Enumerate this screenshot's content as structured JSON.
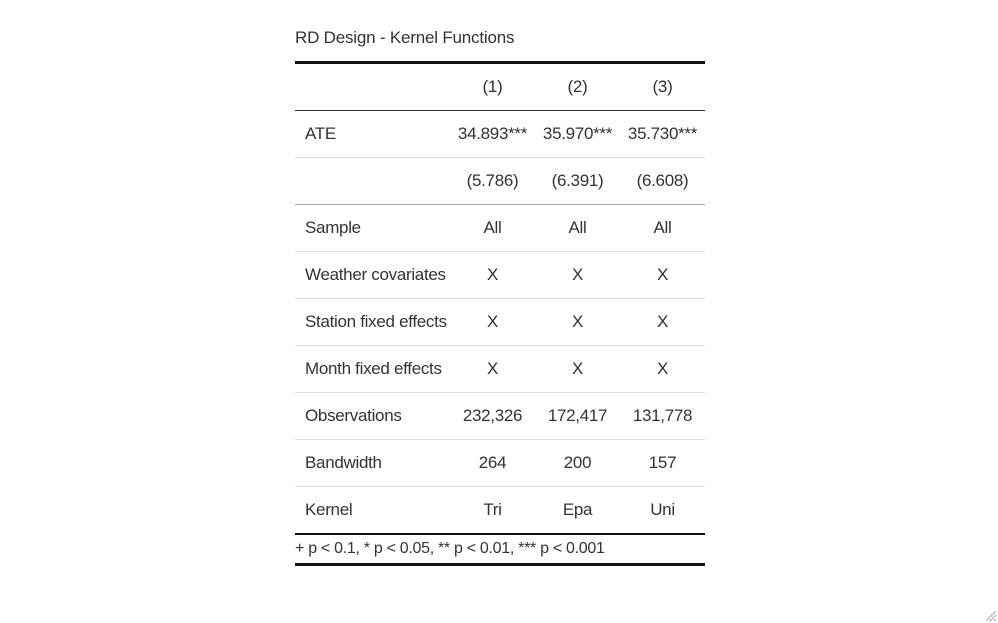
{
  "table": {
    "caption": "RD Design - Kernel Functions",
    "header": [
      "",
      "(1)",
      "(2)",
      "(3)"
    ],
    "rows": [
      {
        "label": "ATE",
        "values": [
          "34.893***",
          "35.970***",
          "35.730***"
        ]
      },
      {
        "label": "",
        "values": [
          "(5.786)",
          "(6.391)",
          "(6.608)"
        ]
      },
      {
        "label": "Sample",
        "values": [
          "All",
          "All",
          "All"
        ]
      },
      {
        "label": "Weather covariates",
        "values": [
          "X",
          "X",
          "X"
        ]
      },
      {
        "label": "Station fixed effects",
        "values": [
          "X",
          "X",
          "X"
        ]
      },
      {
        "label": "Month fixed effects",
        "values": [
          "X",
          "X",
          "X"
        ]
      },
      {
        "label": "Observations",
        "values": [
          "232,326",
          "172,417",
          "131,778"
        ]
      },
      {
        "label": "Bandwidth",
        "values": [
          "264",
          "200",
          "157"
        ]
      },
      {
        "label": "Kernel",
        "values": [
          "Tri",
          "Epa",
          "Uni"
        ]
      }
    ],
    "footnote": "+ p < 0.1, * p < 0.05, ** p < 0.01, *** p < 0.001"
  }
}
